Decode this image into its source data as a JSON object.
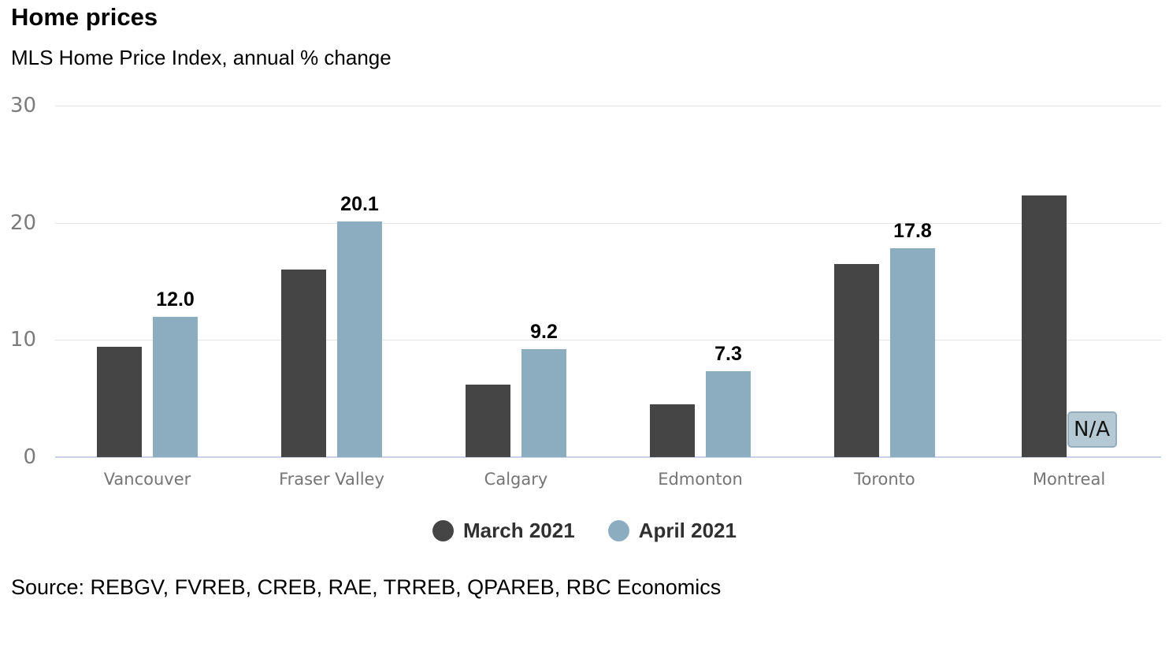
{
  "header": {
    "title": "Home prices",
    "subtitle": "MLS Home Price Index, annual % change"
  },
  "footer": {
    "source": "Source: REBGV, FVREB, CREB, RAE, TRREB, QPAREB, RBC Economics"
  },
  "chart_data": {
    "type": "bar",
    "title": "Home prices",
    "subtitle": "MLS Home Price Index, annual % change",
    "categories": [
      "Vancouver",
      "Fraser Valley",
      "Calgary",
      "Edmonton",
      "Toronto",
      "Montreal"
    ],
    "series": [
      {
        "name": "March 2021",
        "color": "#454545",
        "values": [
          9.4,
          16.0,
          6.2,
          4.5,
          16.5,
          22.3
        ],
        "labels": [
          null,
          null,
          null,
          null,
          null,
          null
        ]
      },
      {
        "name": "April 2021",
        "color": "#8cadbf",
        "values": [
          12.0,
          20.1,
          9.2,
          7.3,
          17.8,
          null
        ],
        "labels": [
          "12.0",
          "20.1",
          "9.2",
          "7.3",
          "17.8",
          null
        ]
      }
    ],
    "na_label": "N/A",
    "xlabel": "",
    "ylabel": "",
    "ylim": [
      0,
      30
    ],
    "yticks": [
      0,
      10,
      20,
      30
    ],
    "grid": true,
    "legend_position": "bottom"
  },
  "style": {
    "colors": {
      "march_bar": "#454545",
      "april_bar": "#8cadbf",
      "na_fill": "#b5c9d4",
      "na_border": "#94adbc",
      "gridline": "#e4e4e4",
      "baseline": "#c7d2e6",
      "tick_text": "#7b7b7b",
      "category_text": "#757575",
      "legend_text": "#303030",
      "data_label_text": "#000000"
    }
  }
}
